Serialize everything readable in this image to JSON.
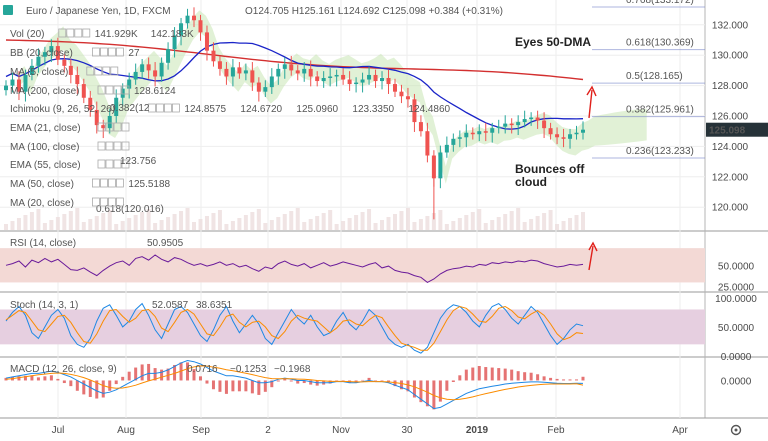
{
  "chart_data": [
    {
      "type": "candlestick",
      "title": "Euro / Japanese Yen, 1D, FXCM",
      "ohlc": {
        "open": "O124.705",
        "high": "H125.161",
        "low": "L124.692",
        "close": "C125.098",
        "change": "+0.384 (+0.31%)"
      },
      "last_price": "125.098",
      "x_ticks": [
        "Jul",
        "Aug",
        "Sep",
        "2",
        "Nov",
        "30",
        "2019",
        "Feb",
        "Apr"
      ],
      "y_ticks": [
        "132.000",
        "130.000",
        "128.000",
        "126.000",
        "124.000",
        "122.000",
        "120.000"
      ],
      "ylim": [
        118.5,
        133.5
      ],
      "fib_levels": [
        {
          "label": "0.768(133.172)",
          "value": 133.172
        },
        {
          "label": "0.618(130.369)",
          "value": 130.369
        },
        {
          "label": "0.5(128.165)",
          "value": 128.165
        },
        {
          "label": "0.382(125.961)",
          "value": 125.961
        },
        {
          "label": "0.236(123.233)",
          "value": 123.233
        },
        {
          "label": "0.618(120.016)",
          "value": 120.016
        }
      ],
      "series_close": [
        128.0,
        128.4,
        127.6,
        128.7,
        129.3,
        129.9,
        130.2,
        130.6,
        129.7,
        129.3,
        128.7,
        128.1,
        127.2,
        126.4,
        125.4,
        125.2,
        126.0,
        127.2,
        127.8,
        128.4,
        128.9,
        129.4,
        129.0,
        128.6,
        129.5,
        130.4,
        131.3,
        132.1,
        132.6,
        132.3,
        131.5,
        130.3,
        129.6,
        129.1,
        128.6,
        129.2,
        128.8,
        129.0,
        128.2,
        127.6,
        127.9,
        128.6,
        129.1,
        129.4,
        129.0,
        128.8,
        129.1,
        128.6,
        128.3,
        128.5,
        128.6,
        128.7,
        128.4,
        128.1,
        128.2,
        128.4,
        128.7,
        128.3,
        128.5,
        128.1,
        127.6,
        127.3,
        127.1,
        125.6,
        125.0,
        123.4,
        121.9,
        123.6,
        124.1,
        124.5,
        124.6,
        124.9,
        124.8,
        125.0,
        124.9,
        125.2,
        125.3,
        125.5,
        125.4,
        125.6,
        125.8,
        125.9,
        125.7,
        125.2,
        124.8,
        124.6,
        124.5,
        124.8,
        124.9,
        125.1
      ],
      "indicators": {
        "vol": {
          "label": "Vol (20)",
          "v1": "141.929K",
          "v2": "142.183K"
        },
        "bb": {
          "label": "BB (20, close)",
          "v": "27"
        },
        "ma5": {
          "label": "MA (5, close)"
        },
        "ma200": {
          "label": "MA (200, close)",
          "value": "128.6124"
        },
        "ichimoku": {
          "label": "Ichimoku (9, 26, 52, 26)",
          "values": [
            "124.8575",
            "124.6720",
            "125.0960",
            "123.3350",
            "124.4860"
          ]
        },
        "ema21": {
          "label": "EMA (21, close)"
        },
        "ma100": {
          "label": "MA (100, close)",
          "value": "123.756"
        },
        "ema55": {
          "label": "EMA (55, close)"
        },
        "ma50": {
          "label": "MA (50, close)",
          "value": "125.5188"
        },
        "ma20": {
          "label": "MA (20, close)"
        },
        "ma_extra": {
          "label": "0.382(12"
        }
      },
      "annotations": {
        "eyes_50dma": "Eyes 50-DMA",
        "bounces_line1": "Bounces off",
        "bounces_line2": "cloud"
      },
      "watermark": "Euro / Japanese Yen"
    },
    {
      "type": "line",
      "title": "RSI (14, close)",
      "value_label": "50.9505",
      "y_ticks": [
        "50.0000",
        "25.0000"
      ],
      "ylim": [
        20,
        90
      ],
      "values": [
        50,
        52,
        55,
        48,
        56,
        53,
        58,
        54,
        57,
        51,
        45,
        44,
        47,
        42,
        38,
        44,
        49,
        53,
        55,
        50,
        58,
        60,
        56,
        62,
        57,
        54,
        59,
        57,
        53,
        50,
        52,
        49,
        51,
        54,
        50,
        52,
        48,
        50,
        46,
        43,
        48,
        46,
        52,
        55,
        51,
        49,
        52,
        47,
        50,
        53,
        49,
        51,
        54,
        52,
        50,
        48,
        51,
        53,
        47,
        49,
        44,
        42,
        41,
        38,
        36,
        30,
        34,
        40,
        44,
        46,
        47,
        49,
        48,
        51,
        50,
        53,
        52,
        54,
        53,
        55,
        54,
        56,
        55,
        52,
        50,
        48,
        49,
        51,
        50,
        51
      ]
    },
    {
      "type": "line",
      "title": "Stoch (14, 3, 1)",
      "k_label": "52.0587",
      "d_label": "38.6351",
      "y_ticks": [
        "100.0000",
        "50.0000",
        "0.0000"
      ],
      "ylim": [
        0,
        110
      ],
      "k": [
        60,
        75,
        85,
        70,
        40,
        30,
        50,
        70,
        80,
        65,
        35,
        20,
        15,
        30,
        60,
        82,
        88,
        70,
        50,
        60,
        80,
        90,
        70,
        45,
        30,
        55,
        80,
        85,
        75,
        55,
        35,
        25,
        45,
        70,
        85,
        60,
        40,
        55,
        70,
        55,
        30,
        20,
        40,
        60,
        80,
        65,
        55,
        70,
        50,
        35,
        40,
        60,
        75,
        55,
        45,
        60,
        80,
        70,
        50,
        30,
        20,
        15,
        20,
        10,
        5,
        15,
        40,
        65,
        80,
        88,
        85,
        75,
        60,
        50,
        70,
        85,
        90,
        80,
        65,
        55,
        70,
        85,
        75,
        55,
        35,
        20,
        30,
        45,
        55,
        52
      ],
      "d": [
        62,
        70,
        78,
        75,
        60,
        45,
        42,
        55,
        68,
        70,
        58,
        40,
        25,
        22,
        38,
        60,
        78,
        80,
        68,
        58,
        65,
        78,
        80,
        68,
        48,
        42,
        58,
        75,
        80,
        72,
        55,
        38,
        35,
        50,
        68,
        72,
        58,
        50,
        58,
        60,
        50,
        35,
        30,
        42,
        60,
        70,
        65,
        62,
        60,
        50,
        40,
        48,
        60,
        62,
        55,
        52,
        62,
        70,
        66,
        50,
        35,
        22,
        18,
        15,
        10,
        10,
        22,
        42,
        62,
        78,
        85,
        82,
        72,
        60,
        58,
        68,
        82,
        85,
        78,
        67,
        64,
        72,
        78,
        70,
        55,
        38,
        28,
        32,
        40,
        38.6
      ]
    },
    {
      "type": "line",
      "title": "MACD (12, 26, close, 9)",
      "values_label": [
        "0.0716",
        "−0.1253",
        "−0.1968"
      ],
      "y_ticks": [
        "0.0000"
      ],
      "ylim": [
        -1.6,
        1.0
      ],
      "macd": [
        0.1,
        0.15,
        0.2,
        0.25,
        0.3,
        0.3,
        0.35,
        0.4,
        0.35,
        0.25,
        0.15,
        0.0,
        -0.15,
        -0.3,
        -0.45,
        -0.55,
        -0.5,
        -0.4,
        -0.25,
        -0.1,
        0.05,
        0.2,
        0.3,
        0.3,
        0.35,
        0.45,
        0.6,
        0.75,
        0.85,
        0.8,
        0.7,
        0.55,
        0.4,
        0.3,
        0.2,
        0.2,
        0.15,
        0.1,
        0.0,
        -0.1,
        -0.1,
        -0.05,
        0.05,
        0.1,
        0.05,
        0.0,
        0.0,
        -0.05,
        -0.1,
        -0.1,
        -0.1,
        -0.05,
        -0.05,
        -0.1,
        -0.1,
        -0.05,
        0.0,
        -0.05,
        -0.05,
        -0.1,
        -0.2,
        -0.3,
        -0.4,
        -0.6,
        -0.8,
        -1.0,
        -1.2,
        -1.15,
        -1.0,
        -0.85,
        -0.7,
        -0.55,
        -0.45,
        -0.35,
        -0.3,
        -0.25,
        -0.2,
        -0.15,
        -0.12,
        -0.1,
        -0.08,
        -0.06,
        -0.06,
        -0.08,
        -0.1,
        -0.12,
        -0.13,
        -0.13,
        -0.12,
        -0.1253
      ],
      "signal": [
        0.05,
        0.08,
        0.12,
        0.16,
        0.2,
        0.24,
        0.27,
        0.3,
        0.32,
        0.3,
        0.26,
        0.2,
        0.12,
        0.02,
        -0.1,
        -0.22,
        -0.3,
        -0.33,
        -0.32,
        -0.27,
        -0.2,
        -0.11,
        -0.02,
        0.06,
        0.14,
        0.22,
        0.3,
        0.4,
        0.5,
        0.58,
        0.62,
        0.61,
        0.57,
        0.52,
        0.46,
        0.41,
        0.36,
        0.31,
        0.25,
        0.18,
        0.12,
        0.08,
        0.07,
        0.07,
        0.07,
        0.06,
        0.05,
        0.03,
        0.0,
        -0.02,
        -0.04,
        -0.04,
        -0.04,
        -0.05,
        -0.06,
        -0.06,
        -0.05,
        -0.05,
        -0.05,
        -0.06,
        -0.09,
        -0.13,
        -0.19,
        -0.27,
        -0.38,
        -0.5,
        -0.64,
        -0.74,
        -0.8,
        -0.82,
        -0.8,
        -0.76,
        -0.7,
        -0.63,
        -0.56,
        -0.5,
        -0.44,
        -0.38,
        -0.33,
        -0.28,
        -0.24,
        -0.21,
        -0.18,
        -0.16,
        -0.15,
        -0.15,
        -0.15,
        -0.15,
        -0.14,
        -0.1968
      ]
    }
  ],
  "ui": {
    "settings_icon": "gear-icon",
    "arrow_color": "#e0201b",
    "up_color": "#26a69a",
    "down_color": "#ef5350"
  }
}
